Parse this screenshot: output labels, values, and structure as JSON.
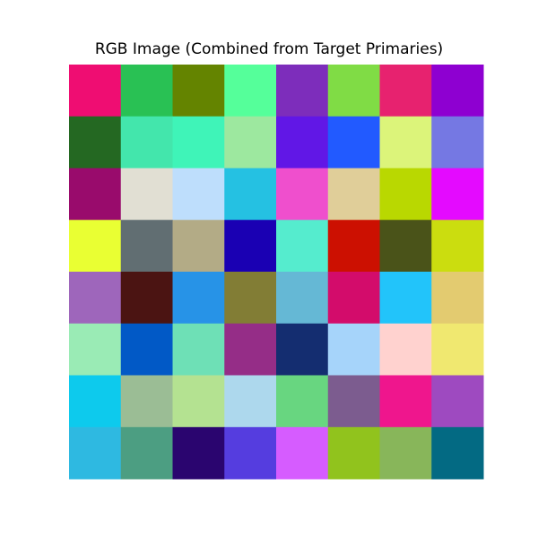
{
  "chart_data": {
    "type": "heatmap",
    "title": "RGB Image (Combined from Target Primaries)",
    "rows": 8,
    "cols": 8,
    "grid": false,
    "axes_visible": false,
    "cells": [
      [
        "#ef0d72",
        "#29c154",
        "#648400",
        "#55ff9a",
        "#7d2dbb",
        "#80dc45",
        "#e7226f",
        "#8e00d1"
      ],
      [
        "#246822",
        "#43e6ac",
        "#3ff4b8",
        "#9de89f",
        "#6117e6",
        "#225aff",
        "#dcf47a",
        "#7578e3"
      ],
      [
        "#990b6c",
        "#e1dfd3",
        "#bedefc",
        "#25c1e2",
        "#ef4fcd",
        "#e0ce99",
        "#b9d801",
        "#e40aff"
      ],
      [
        "#e9ff33",
        "#616e72",
        "#b3ab86",
        "#1a00b3",
        "#55ecce",
        "#cc1001",
        "#4a5319",
        "#cbdd0f"
      ],
      [
        "#9e66bb",
        "#4b1412",
        "#2793e7",
        "#827d35",
        "#65b8d5",
        "#d30c6b",
        "#22c4fa",
        "#e3cb70"
      ],
      [
        "#9aebb5",
        "#0159c6",
        "#6ee0b6",
        "#952d87",
        "#142d70",
        "#a6d4fa",
        "#ffd2cf",
        "#f0e870"
      ],
      [
        "#0dcaed",
        "#9bbd95",
        "#b4e291",
        "#add8ed",
        "#68d680",
        "#7c5c8f",
        "#ef168d",
        "#9e4ac0"
      ],
      [
        "#2eb9e1",
        "#4c9e82",
        "#2a056f",
        "#553ddf",
        "#d65cff",
        "#91c31d",
        "#88b65a",
        "#036a83"
      ]
    ]
  }
}
